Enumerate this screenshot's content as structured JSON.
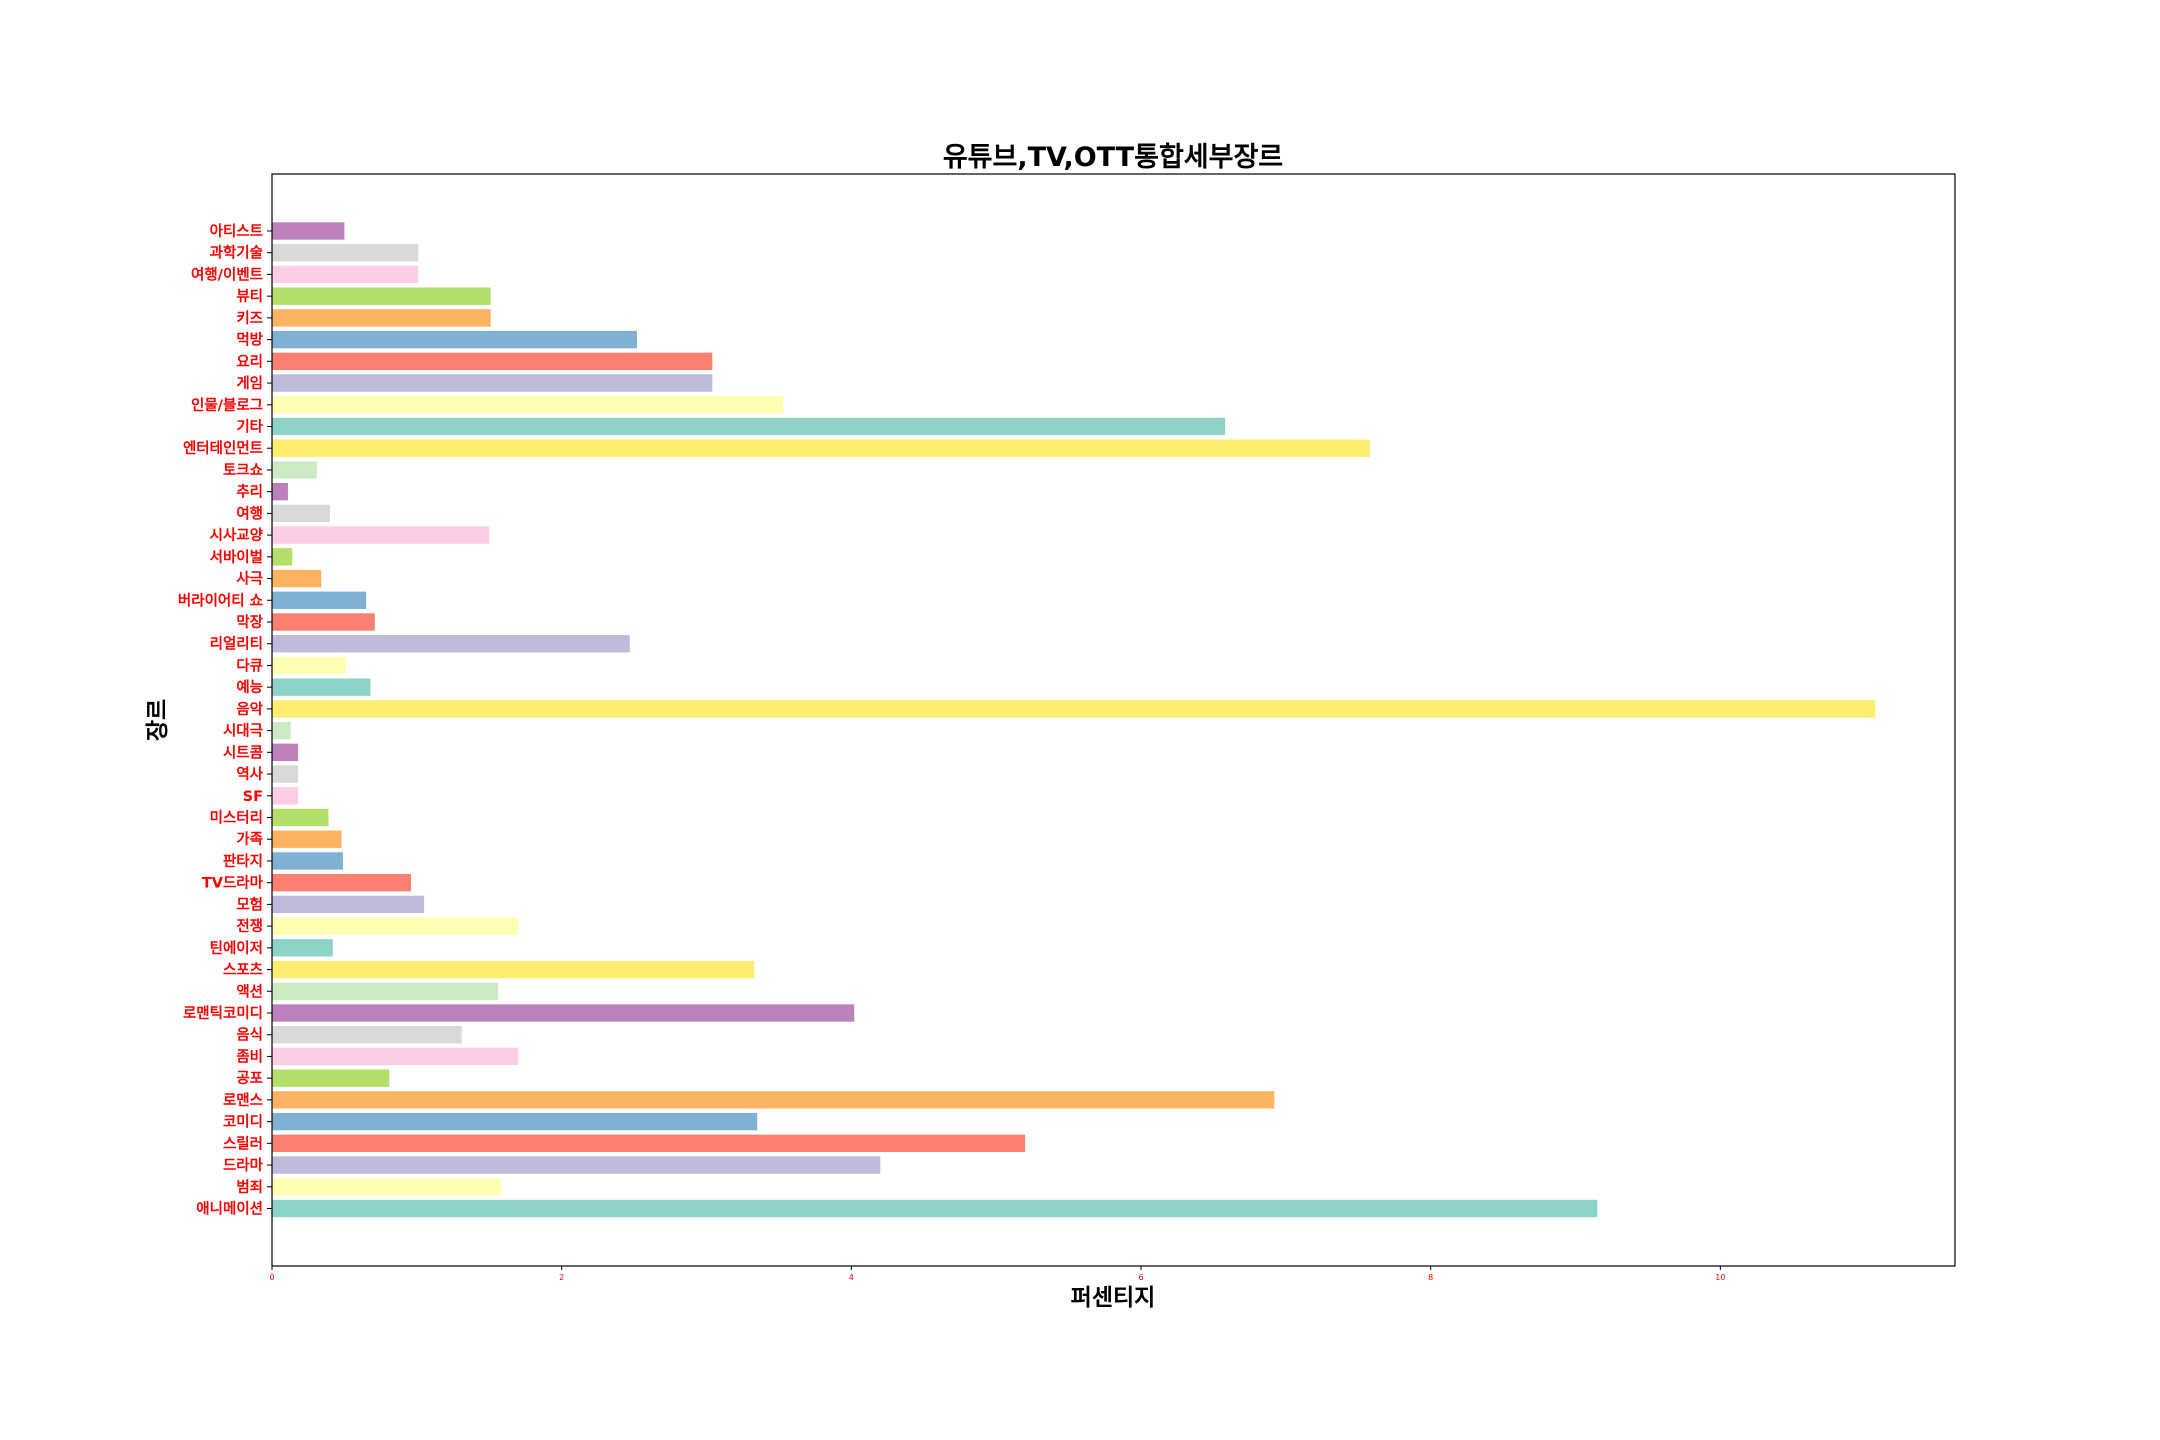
{
  "chart_data": {
    "type": "bar",
    "orientation": "horizontal",
    "title": "유튜브,TV,OTT통합세부장르",
    "xlabel": "퍼센티지",
    "ylabel": "장르",
    "xlim": [
      0,
      11.62
    ],
    "xticks": [
      0,
      2,
      4,
      6,
      8,
      10
    ],
    "xtick_labels": [
      "0",
      "2",
      "4",
      "6",
      "8",
      "10"
    ],
    "grid": false,
    "legend": "none",
    "tick_color": "#ff0000",
    "palette": [
      "#8dd3c7",
      "#ffffb3",
      "#bebada",
      "#fb8072",
      "#80b1d3",
      "#fdb462",
      "#b3de69",
      "#fccde5",
      "#d9d9d9",
      "#bc80bd",
      "#ccebc5",
      "#ffed6f"
    ],
    "categories": [
      "애니메이션",
      "범죄",
      "드라마",
      "스릴러",
      "코미디",
      "로맨스",
      "공포",
      "좀비",
      "음식",
      "로맨틱코미디",
      "액션",
      "스포츠",
      "틴에이저",
      "전쟁",
      "모험",
      "TV드라마",
      "판타지",
      "가족",
      "미스터리",
      "SF",
      "역사",
      "시트콤",
      "시대극",
      "음악",
      "예능",
      "다큐",
      "리얼리티",
      "막장",
      "버라이어티 쇼",
      "사극",
      "서바이벌",
      "시사교양",
      "여행",
      "추리",
      "토크쇼",
      "엔터테인먼트",
      "기타",
      "인물/블로그",
      "게임",
      "요리",
      "먹방",
      "키즈",
      "뷰티",
      "여행/이벤트",
      "과학기술",
      "아티스트"
    ],
    "values": [
      9.15,
      1.58,
      4.2,
      5.2,
      3.35,
      6.92,
      0.81,
      1.7,
      1.31,
      4.02,
      1.56,
      3.33,
      0.42,
      1.7,
      1.05,
      0.96,
      0.49,
      0.48,
      0.39,
      0.18,
      0.18,
      0.18,
      0.13,
      11.07,
      0.68,
      0.51,
      2.47,
      0.71,
      0.65,
      0.34,
      0.14,
      1.5,
      0.4,
      0.11,
      0.31,
      7.58,
      6.58,
      3.53,
      3.04,
      3.04,
      2.52,
      1.51,
      1.51,
      1.01,
      1.01,
      0.5
    ]
  }
}
